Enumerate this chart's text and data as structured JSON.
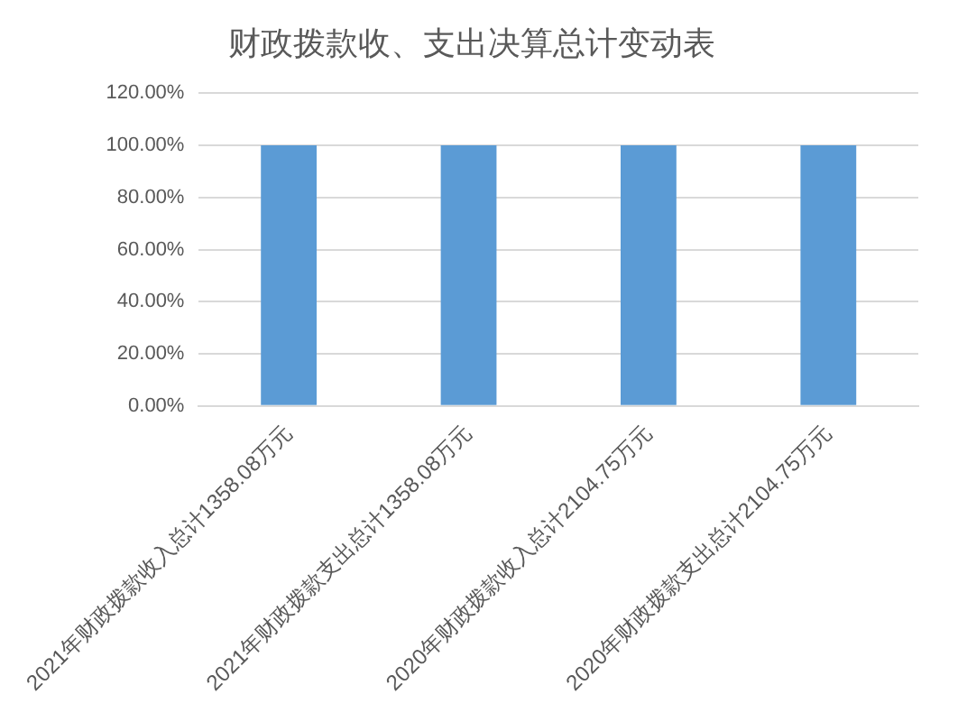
{
  "chart_data": {
    "type": "bar",
    "title": "财政拨款收、支出决算总计变动表",
    "categories": [
      "2021年财政拨款收入总计1358.08万元",
      "2021年财政拨款支出总计1358.08万元",
      "2020年财政拨款收入总计2104.75万元",
      "2020年财政拨款支出总计2104.75万元"
    ],
    "values": [
      100,
      100,
      100,
      100
    ],
    "color": "#5b9bd5",
    "ylim": [
      0,
      120
    ],
    "yticks": [
      {
        "value": 0,
        "label": "0.00%"
      },
      {
        "value": 20,
        "label": "20.00%"
      },
      {
        "value": 40,
        "label": "40.00%"
      },
      {
        "value": 60,
        "label": "60.00%"
      },
      {
        "value": 80,
        "label": "80.00%"
      },
      {
        "value": 100,
        "label": "100.00%"
      },
      {
        "value": 120,
        "label": "120.00%"
      }
    ],
    "grid": "y"
  }
}
